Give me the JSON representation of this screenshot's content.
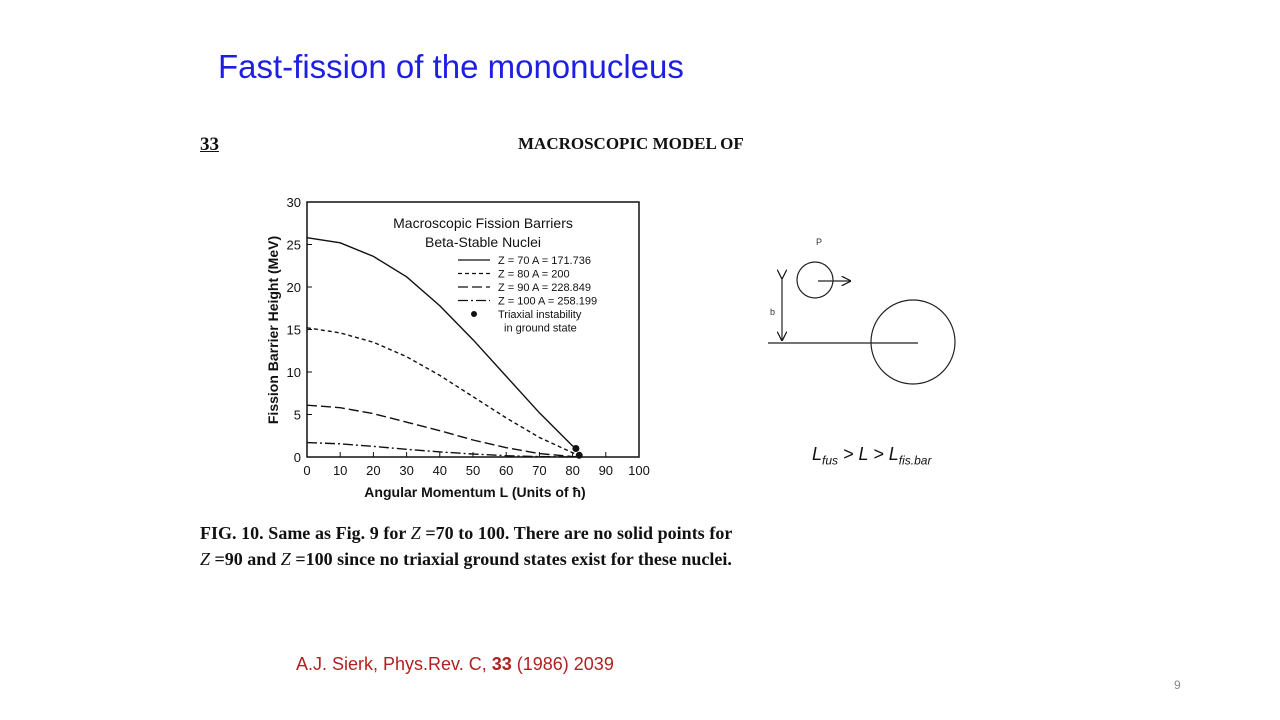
{
  "slide": {
    "title": "Fast-fission of the mononucleus",
    "page_number": "9"
  },
  "figure": {
    "page_num": "33",
    "running_head": "MACROSCOPIC MODEL OF",
    "caption": {
      "label": "FIG. 10.",
      "text_1": " Same as Fig. 9 for ",
      "z1": "Z",
      "text_2": " =70 to 100. There are no solid points for ",
      "z2": "Z",
      "text_3": " =90 and ",
      "z3": "Z",
      "text_4": " =100 since no triaxial ground states exist for these nuclei."
    }
  },
  "reference": {
    "prefix": "A.J. Sierk, Phys.Rev. C, ",
    "volume": "33",
    "suffix": " (1986) 2039"
  },
  "diagram": {
    "label_p": "P",
    "label_b": "b"
  },
  "formula": {
    "l1": "L",
    "sub1": "fus",
    "mid": " > L > ",
    "l2": "L",
    "sub2": "fis.bar"
  },
  "chart_data": {
    "type": "line",
    "title": "Macroscopic Fission Barriers",
    "subtitle": "Beta-Stable Nuclei",
    "xlabel": "Angular Momentum  L  (Units of ħ)",
    "ylabel": "Fission Barrier Height  (MeV)",
    "xlim": [
      0,
      100
    ],
    "ylim": [
      0,
      30
    ],
    "xticks": [
      0,
      10,
      20,
      30,
      40,
      50,
      60,
      70,
      80,
      90,
      100
    ],
    "yticks": [
      0,
      5,
      10,
      15,
      20,
      25,
      30
    ],
    "series": [
      {
        "name": "Z = 70   A = 171.736",
        "dash": "solid",
        "x": [
          0,
          10,
          20,
          30,
          40,
          50,
          60,
          70,
          80,
          81
        ],
        "y": [
          25.8,
          25.2,
          23.6,
          21.2,
          17.8,
          13.8,
          9.5,
          5.2,
          1.3,
          1.0
        ]
      },
      {
        "name": "Z = 80   A = 200",
        "dash": "dash",
        "x": [
          0,
          10,
          20,
          30,
          40,
          50,
          60,
          70,
          80,
          82
        ],
        "y": [
          15.2,
          14.6,
          13.5,
          11.8,
          9.6,
          7.1,
          4.6,
          2.3,
          0.5,
          0.2
        ]
      },
      {
        "name": "Z = 90   A = 228.849",
        "dash": "longdash",
        "x": [
          0,
          10,
          20,
          30,
          40,
          50,
          60,
          70,
          80,
          82
        ],
        "y": [
          6.1,
          5.8,
          5.1,
          4.1,
          3.1,
          2.0,
          1.1,
          0.4,
          0.05,
          0.0
        ]
      },
      {
        "name": "Z = 100   A = 258.199",
        "dash": "dashdot",
        "x": [
          0,
          10,
          20,
          30,
          40,
          50,
          60,
          70,
          80
        ],
        "y": [
          1.7,
          1.55,
          1.25,
          0.9,
          0.6,
          0.35,
          0.15,
          0.05,
          0.0
        ]
      }
    ],
    "points": {
      "name": "Triaxial instability in ground state",
      "x": [
        81,
        82
      ],
      "y": [
        1.0,
        0.2
      ]
    },
    "grid": false,
    "legend_position": "top-right"
  }
}
